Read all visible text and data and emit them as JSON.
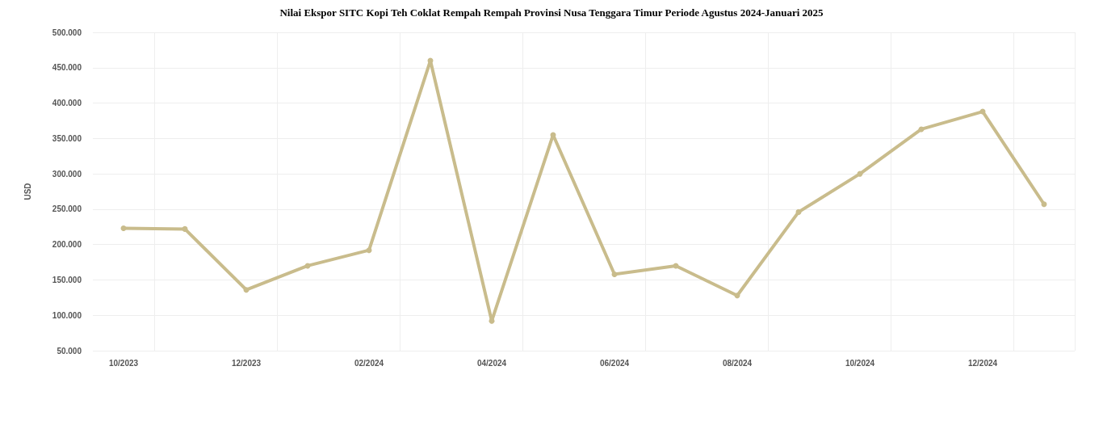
{
  "chart_data": {
    "type": "line",
    "title": "Nilai Ekspor SITC Kopi Teh Coklat Rempah Rempah Provinsi Nusa Tenggara Timur Periode Agustus 2024-Januari 2025",
    "ylabel": "USD",
    "categories": [
      "10/2023",
      null,
      "12/2023",
      null,
      "02/2024",
      null,
      "04/2024",
      null,
      "06/2024",
      null,
      "08/2024",
      null,
      "10/2024",
      null,
      "12/2024",
      null
    ],
    "series": [
      {
        "color": "#c9bc8c",
        "values": [
          223000,
          222000,
          136000,
          170000,
          192000,
          460000,
          92000,
          355000,
          158000,
          170000,
          128000,
          246000,
          300000,
          363000,
          388000,
          257000
        ]
      }
    ],
    "ylim": [
      50000,
      500000
    ],
    "yticks": [
      {
        "value": 50000,
        "label": "50.000"
      },
      {
        "value": 100000,
        "label": "100.000"
      },
      {
        "value": 150000,
        "label": "150.000"
      },
      {
        "value": 200000,
        "label": "200.000"
      },
      {
        "value": 250000,
        "label": "250.000"
      },
      {
        "value": 300000,
        "label": "300.000"
      },
      {
        "value": 350000,
        "label": "350.000"
      },
      {
        "value": 400000,
        "label": "400.000"
      },
      {
        "value": 450000,
        "label": "450.000"
      },
      {
        "value": 500000,
        "label": "500.000"
      }
    ],
    "grid": true,
    "marker": "circle",
    "line_style": "solid"
  }
}
